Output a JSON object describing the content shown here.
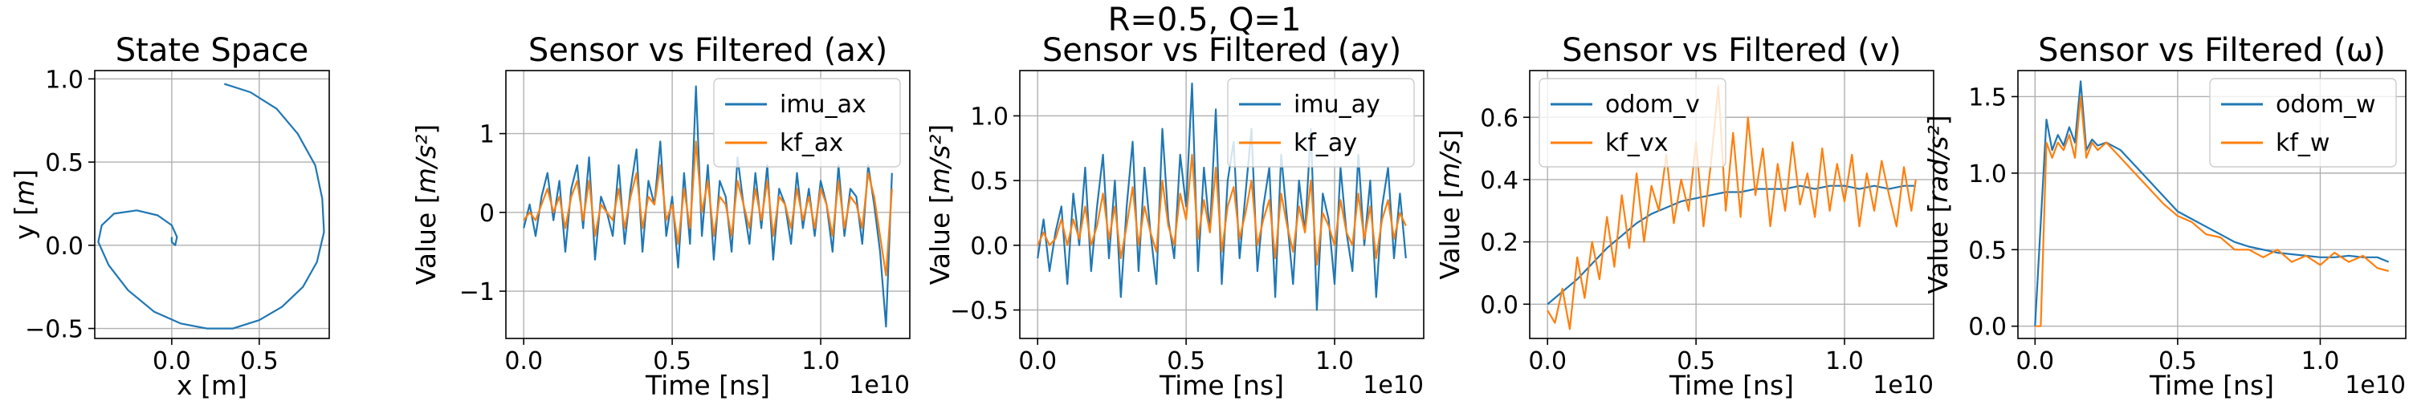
{
  "figure": {
    "suptitle": "R=0.5, Q=1"
  },
  "colors": {
    "blue": "#1f77b4",
    "orange": "#ff7f0e",
    "grid": "#b0b0b0"
  },
  "chart_data": [
    {
      "type": "line",
      "title": "State Space",
      "xlabel": "x [m]",
      "ylabel": "y [m]",
      "xlim": [
        -0.44,
        0.9
      ],
      "ylim": [
        -0.56,
        1.05
      ],
      "xticks": [
        0.0,
        0.5
      ],
      "xtick_labels": [
        "0.0",
        "0.5"
      ],
      "yticks": [
        -0.5,
        0.0,
        0.5,
        1.0
      ],
      "ytick_labels": [
        "−0.5",
        "0.0",
        "0.5",
        "1.0"
      ],
      "grid": true,
      "legend": null,
      "exponent_label": "",
      "series": [
        {
          "color": "#1f77b4",
          "x": [
            0.3,
            0.45,
            0.6,
            0.72,
            0.82,
            0.86,
            0.87,
            0.83,
            0.75,
            0.63,
            0.5,
            0.35,
            0.2,
            0.05,
            -0.1,
            -0.25,
            -0.36,
            -0.42,
            -0.4,
            -0.33,
            -0.2,
            -0.08,
            0.0,
            0.03,
            0.02,
            0.0,
            0.0
          ],
          "y": [
            0.97,
            0.92,
            0.82,
            0.67,
            0.48,
            0.28,
            0.08,
            -0.1,
            -0.25,
            -0.37,
            -0.45,
            -0.5,
            -0.5,
            -0.47,
            -0.4,
            -0.27,
            -0.12,
            0.02,
            0.12,
            0.19,
            0.21,
            0.18,
            0.12,
            0.05,
            0.0,
            0.02,
            0.05
          ]
        }
      ]
    },
    {
      "type": "line",
      "title": "Sensor vs Filtered (ax)",
      "xlabel": "Time [ns]",
      "ylabel": "Value [m/s²]",
      "xlim": [
        -0.06,
        1.3
      ],
      "ylim": [
        -1.6,
        1.8
      ],
      "xticks": [
        0.0,
        0.5,
        1.0
      ],
      "xtick_labels": [
        "0.0",
        "0.5",
        "1.0"
      ],
      "yticks": [
        -1,
        0,
        1
      ],
      "ytick_labels": [
        "−1",
        "0",
        "1"
      ],
      "grid": true,
      "legend": "top-right",
      "exponent_label": "1e10",
      "series": [
        {
          "name": "imu_ax",
          "color": "#1f77b4",
          "x": [
            0.0,
            0.02,
            0.04,
            0.06,
            0.08,
            0.1,
            0.12,
            0.14,
            0.16,
            0.18,
            0.2,
            0.22,
            0.24,
            0.26,
            0.28,
            0.3,
            0.32,
            0.34,
            0.36,
            0.38,
            0.4,
            0.42,
            0.44,
            0.46,
            0.48,
            0.5,
            0.52,
            0.54,
            0.56,
            0.58,
            0.6,
            0.62,
            0.64,
            0.66,
            0.68,
            0.7,
            0.72,
            0.74,
            0.76,
            0.78,
            0.8,
            0.82,
            0.84,
            0.86,
            0.88,
            0.9,
            0.92,
            0.94,
            0.96,
            0.98,
            1.0,
            1.02,
            1.04,
            1.06,
            1.08,
            1.1,
            1.12,
            1.14,
            1.16,
            1.18,
            1.2,
            1.22,
            1.24
          ],
          "y": [
            -0.2,
            0.1,
            -0.3,
            0.2,
            0.5,
            -0.1,
            0.4,
            -0.5,
            0.3,
            0.6,
            -0.2,
            0.7,
            -0.6,
            0.2,
            0.0,
            -0.3,
            0.6,
            -0.4,
            0.3,
            0.8,
            -0.5,
            0.4,
            0.1,
            0.9,
            -0.3,
            0.2,
            -0.7,
            0.5,
            -0.4,
            1.6,
            -0.3,
            0.6,
            -0.6,
            0.4,
            0.2,
            -0.5,
            0.7,
            0.1,
            -0.4,
            0.5,
            -0.2,
            0.6,
            -0.6,
            0.3,
            0.1,
            -0.4,
            0.5,
            -0.2,
            0.3,
            -0.3,
            0.4,
            0.1,
            -0.5,
            0.6,
            -0.3,
            0.3,
            0.2,
            -0.4,
            0.6,
            0.1,
            -0.5,
            -1.45,
            0.5
          ]
        },
        {
          "name": "kf_ax",
          "color": "#ff7f0e",
          "x": [
            0.0,
            0.02,
            0.04,
            0.06,
            0.08,
            0.1,
            0.12,
            0.14,
            0.16,
            0.18,
            0.2,
            0.22,
            0.24,
            0.26,
            0.28,
            0.3,
            0.32,
            0.34,
            0.36,
            0.38,
            0.4,
            0.42,
            0.44,
            0.46,
            0.48,
            0.5,
            0.52,
            0.54,
            0.56,
            0.58,
            0.6,
            0.62,
            0.64,
            0.66,
            0.68,
            0.7,
            0.72,
            0.74,
            0.76,
            0.78,
            0.8,
            0.82,
            0.84,
            0.86,
            0.88,
            0.9,
            0.92,
            0.94,
            0.96,
            0.98,
            1.0,
            1.02,
            1.04,
            1.06,
            1.08,
            1.1,
            1.12,
            1.14,
            1.16,
            1.18,
            1.2,
            1.22,
            1.24
          ],
          "y": [
            -0.1,
            0.0,
            -0.1,
            0.1,
            0.3,
            0.0,
            0.2,
            -0.2,
            0.2,
            0.4,
            -0.1,
            0.4,
            -0.3,
            0.1,
            0.0,
            -0.1,
            0.3,
            -0.2,
            0.2,
            0.5,
            -0.2,
            0.2,
            0.1,
            0.6,
            -0.1,
            0.1,
            -0.4,
            0.3,
            -0.2,
            0.9,
            0.0,
            0.4,
            -0.3,
            0.2,
            0.1,
            -0.3,
            0.4,
            0.1,
            -0.2,
            0.3,
            -0.1,
            0.4,
            -0.3,
            0.2,
            0.1,
            -0.2,
            0.3,
            -0.1,
            0.2,
            -0.2,
            0.3,
            0.1,
            -0.3,
            0.4,
            -0.2,
            0.2,
            0.1,
            -0.2,
            0.5,
            0.2,
            -0.3,
            -0.8,
            0.3
          ]
        }
      ]
    },
    {
      "type": "line",
      "title": "Sensor vs Filtered (ay)",
      "xlabel": "Time [ns]",
      "ylabel": "Value [m/s²]",
      "xlim": [
        -0.06,
        1.3
      ],
      "ylim": [
        -0.72,
        1.35
      ],
      "xticks": [
        0.0,
        0.5,
        1.0
      ],
      "xtick_labels": [
        "0.0",
        "0.5",
        "1.0"
      ],
      "yticks": [
        -0.5,
        0.0,
        0.5,
        1.0
      ],
      "ytick_labels": [
        "−0.5",
        "0.0",
        "0.5",
        "1.0"
      ],
      "grid": true,
      "legend": "top-right",
      "exponent_label": "1e10",
      "series": [
        {
          "name": "imu_ay",
          "color": "#1f77b4",
          "x": [
            0.0,
            0.02,
            0.04,
            0.06,
            0.08,
            0.1,
            0.12,
            0.14,
            0.16,
            0.18,
            0.2,
            0.22,
            0.24,
            0.26,
            0.28,
            0.3,
            0.32,
            0.34,
            0.36,
            0.38,
            0.4,
            0.42,
            0.44,
            0.46,
            0.48,
            0.5,
            0.52,
            0.54,
            0.56,
            0.58,
            0.6,
            0.62,
            0.64,
            0.66,
            0.68,
            0.7,
            0.72,
            0.74,
            0.76,
            0.78,
            0.8,
            0.82,
            0.84,
            0.86,
            0.88,
            0.9,
            0.92,
            0.94,
            0.96,
            0.98,
            1.0,
            1.02,
            1.04,
            1.06,
            1.08,
            1.1,
            1.12,
            1.14,
            1.16,
            1.18,
            1.2,
            1.22,
            1.24
          ],
          "y": [
            -0.1,
            0.2,
            -0.2,
            0.1,
            0.3,
            -0.3,
            0.4,
            0.0,
            0.6,
            -0.2,
            0.3,
            0.7,
            -0.1,
            0.5,
            -0.4,
            0.3,
            0.8,
            -0.2,
            0.6,
            0.1,
            -0.3,
            0.9,
            0.2,
            -0.1,
            0.7,
            0.3,
            1.25,
            -0.2,
            0.6,
            0.1,
            1.05,
            -0.3,
            0.5,
            0.8,
            -0.1,
            0.4,
            0.9,
            -0.2,
            0.3,
            0.6,
            -0.4,
            0.7,
            0.2,
            -0.3,
            0.5,
            0.1,
            0.9,
            -0.5,
            0.4,
            0.2,
            -0.3,
            0.6,
            0.1,
            -0.2,
            0.7,
            0.0,
            0.5,
            -0.4,
            0.3,
            0.6,
            -0.1,
            0.4,
            -0.1
          ]
        },
        {
          "name": "kf_ay",
          "color": "#ff7f0e",
          "x": [
            0.0,
            0.02,
            0.04,
            0.06,
            0.08,
            0.1,
            0.12,
            0.14,
            0.16,
            0.18,
            0.2,
            0.22,
            0.24,
            0.26,
            0.28,
            0.3,
            0.32,
            0.34,
            0.36,
            0.38,
            0.4,
            0.42,
            0.44,
            0.46,
            0.48,
            0.5,
            0.52,
            0.54,
            0.56,
            0.58,
            0.6,
            0.62,
            0.64,
            0.66,
            0.68,
            0.7,
            0.72,
            0.74,
            0.76,
            0.78,
            0.8,
            0.82,
            0.84,
            0.86,
            0.88,
            0.9,
            0.92,
            0.94,
            0.96,
            0.98,
            1.0,
            1.02,
            1.04,
            1.06,
            1.08,
            1.1,
            1.12,
            1.14,
            1.16,
            1.18,
            1.2,
            1.22,
            1.24
          ],
          "y": [
            0.0,
            0.1,
            0.0,
            0.05,
            0.2,
            0.0,
            0.2,
            0.05,
            0.3,
            0.0,
            0.15,
            0.4,
            0.05,
            0.3,
            -0.1,
            0.15,
            0.45,
            0.0,
            0.3,
            0.1,
            -0.05,
            0.5,
            0.15,
            0.0,
            0.4,
            0.2,
            0.7,
            0.05,
            0.35,
            0.1,
            0.6,
            -0.05,
            0.3,
            0.45,
            0.05,
            0.25,
            0.5,
            0.0,
            0.2,
            0.35,
            -0.1,
            0.4,
            0.15,
            -0.05,
            0.3,
            0.1,
            0.5,
            -0.15,
            0.25,
            0.15,
            0.0,
            0.35,
            0.1,
            0.0,
            0.4,
            0.05,
            0.3,
            -0.1,
            0.2,
            0.35,
            0.05,
            0.25,
            0.15
          ]
        }
      ]
    },
    {
      "type": "line",
      "title": "Sensor vs Filtered (v)",
      "xlabel": "Time [ns]",
      "ylabel": "Value [m/s]",
      "xlim": [
        -0.06,
        1.3
      ],
      "ylim": [
        -0.11,
        0.75
      ],
      "xticks": [
        0.0,
        0.5,
        1.0
      ],
      "xtick_labels": [
        "0.0",
        "0.5",
        "1.0"
      ],
      "yticks": [
        0.0,
        0.2,
        0.4,
        0.6
      ],
      "ytick_labels": [
        "0.0",
        "0.2",
        "0.4",
        "0.6"
      ],
      "grid": true,
      "legend": "top-left",
      "exponent_label": "1e10",
      "series": [
        {
          "name": "odom_v",
          "color": "#1f77b4",
          "x": [
            0.0,
            0.05,
            0.1,
            0.15,
            0.2,
            0.25,
            0.3,
            0.35,
            0.4,
            0.45,
            0.5,
            0.55,
            0.6,
            0.65,
            0.7,
            0.75,
            0.8,
            0.85,
            0.9,
            0.95,
            1.0,
            1.05,
            1.1,
            1.15,
            1.2,
            1.24
          ],
          "y": [
            0.0,
            0.04,
            0.08,
            0.13,
            0.18,
            0.22,
            0.26,
            0.29,
            0.31,
            0.33,
            0.34,
            0.35,
            0.36,
            0.36,
            0.37,
            0.37,
            0.37,
            0.38,
            0.37,
            0.38,
            0.38,
            0.37,
            0.38,
            0.37,
            0.38,
            0.38
          ]
        },
        {
          "name": "kf_vx",
          "color": "#ff7f0e",
          "x": [
            0.0,
            0.025,
            0.05,
            0.075,
            0.1,
            0.125,
            0.15,
            0.175,
            0.2,
            0.225,
            0.25,
            0.275,
            0.3,
            0.325,
            0.35,
            0.375,
            0.4,
            0.425,
            0.45,
            0.475,
            0.5,
            0.525,
            0.55,
            0.575,
            0.6,
            0.625,
            0.65,
            0.675,
            0.7,
            0.725,
            0.75,
            0.775,
            0.8,
            0.825,
            0.85,
            0.875,
            0.9,
            0.925,
            0.95,
            0.975,
            1.0,
            1.025,
            1.05,
            1.075,
            1.1,
            1.125,
            1.15,
            1.175,
            1.2,
            1.225,
            1.24
          ],
          "y": [
            -0.02,
            -0.06,
            0.05,
            -0.08,
            0.15,
            0.02,
            0.2,
            0.08,
            0.28,
            0.12,
            0.35,
            0.18,
            0.42,
            0.2,
            0.38,
            0.3,
            0.48,
            0.26,
            0.4,
            0.3,
            0.52,
            0.25,
            0.45,
            0.7,
            0.3,
            0.55,
            0.28,
            0.6,
            0.35,
            0.5,
            0.25,
            0.45,
            0.3,
            0.52,
            0.32,
            0.42,
            0.28,
            0.5,
            0.3,
            0.45,
            0.33,
            0.48,
            0.25,
            0.42,
            0.3,
            0.46,
            0.35,
            0.25,
            0.44,
            0.3,
            0.4
          ]
        }
      ]
    },
    {
      "type": "line",
      "title": "Sensor vs Filtered (ω)",
      "xlabel": "Time [ns]",
      "ylabel": "Value [rad/s²]",
      "xlim": [
        -0.06,
        1.3
      ],
      "ylim": [
        -0.08,
        1.67
      ],
      "xticks": [
        0.0,
        0.5,
        1.0
      ],
      "xtick_labels": [
        "0.0",
        "0.5",
        "1.0"
      ],
      "yticks": [
        0.0,
        0.5,
        1.0,
        1.5
      ],
      "ytick_labels": [
        "0.0",
        "0.5",
        "1.0",
        "1.5"
      ],
      "grid": true,
      "legend": "top-right",
      "exponent_label": "1e10",
      "series": [
        {
          "name": "odom_w",
          "color": "#1f77b4",
          "x": [
            0.0,
            0.04,
            0.06,
            0.08,
            0.1,
            0.12,
            0.14,
            0.16,
            0.18,
            0.2,
            0.22,
            0.25,
            0.3,
            0.35,
            0.4,
            0.45,
            0.5,
            0.55,
            0.6,
            0.65,
            0.7,
            0.75,
            0.8,
            0.85,
            0.9,
            0.95,
            1.0,
            1.05,
            1.1,
            1.15,
            1.2,
            1.24
          ],
          "y": [
            0.0,
            1.35,
            1.15,
            1.25,
            1.18,
            1.3,
            1.2,
            1.6,
            1.15,
            1.22,
            1.18,
            1.2,
            1.15,
            1.05,
            0.95,
            0.85,
            0.75,
            0.7,
            0.65,
            0.6,
            0.55,
            0.52,
            0.5,
            0.48,
            0.47,
            0.46,
            0.45,
            0.45,
            0.46,
            0.45,
            0.45,
            0.42
          ]
        },
        {
          "name": "kf_w",
          "color": "#ff7f0e",
          "x": [
            0.0,
            0.02,
            0.04,
            0.06,
            0.08,
            0.1,
            0.12,
            0.14,
            0.16,
            0.18,
            0.2,
            0.22,
            0.25,
            0.3,
            0.35,
            0.4,
            0.45,
            0.5,
            0.55,
            0.6,
            0.65,
            0.7,
            0.75,
            0.8,
            0.85,
            0.9,
            0.95,
            1.0,
            1.05,
            1.1,
            1.15,
            1.2,
            1.24
          ],
          "y": [
            0.0,
            0.0,
            1.2,
            1.1,
            1.2,
            1.15,
            1.25,
            1.1,
            1.5,
            1.1,
            1.2,
            1.15,
            1.2,
            1.1,
            1.0,
            0.9,
            0.8,
            0.72,
            0.68,
            0.6,
            0.58,
            0.5,
            0.5,
            0.45,
            0.5,
            0.42,
            0.46,
            0.4,
            0.48,
            0.42,
            0.46,
            0.38,
            0.36
          ]
        }
      ]
    }
  ]
}
